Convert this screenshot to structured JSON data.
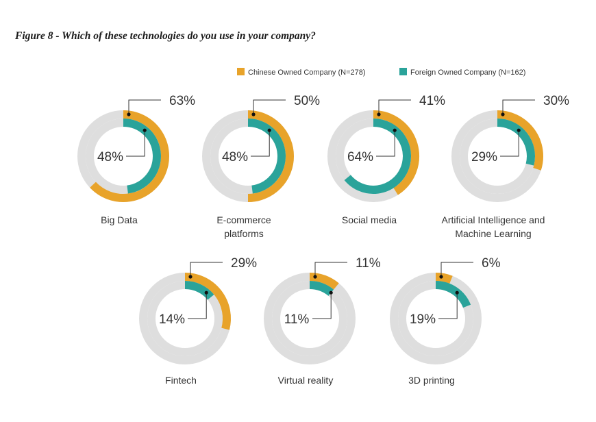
{
  "colors": {
    "chinese": "#e8a32a",
    "foreign": "#2aa39a",
    "track": "#dedede",
    "leader": "#333333"
  },
  "chart_data": {
    "type": "pie",
    "title": "Figure 8 - Which of these technologies do you use in your company?",
    "legend_position": "top-right",
    "series": [
      {
        "name": "Chinese Owned Company (N=278)",
        "values": [
          63,
          50,
          41,
          30,
          29,
          11,
          6
        ]
      },
      {
        "name": "Foreign Owned Company (N=162)",
        "values": [
          48,
          48,
          64,
          29,
          14,
          11,
          19
        ]
      }
    ],
    "categories": [
      [
        "Big Data"
      ],
      [
        "E-commerce",
        "platforms"
      ],
      [
        "Social media"
      ],
      [
        "Artificial Intelligence and",
        "Machine Learning"
      ],
      [
        "Fintech"
      ],
      [
        "Virtual reality"
      ],
      [
        "3D printing"
      ]
    ],
    "value_labels": {
      "chinese": [
        "63%",
        "50%",
        "41%",
        "30%",
        "29%",
        "11%",
        "6%"
      ],
      "foreign": [
        "48%",
        "48%",
        "64%",
        "29%",
        "14%",
        "11%",
        "19%"
      ]
    }
  }
}
